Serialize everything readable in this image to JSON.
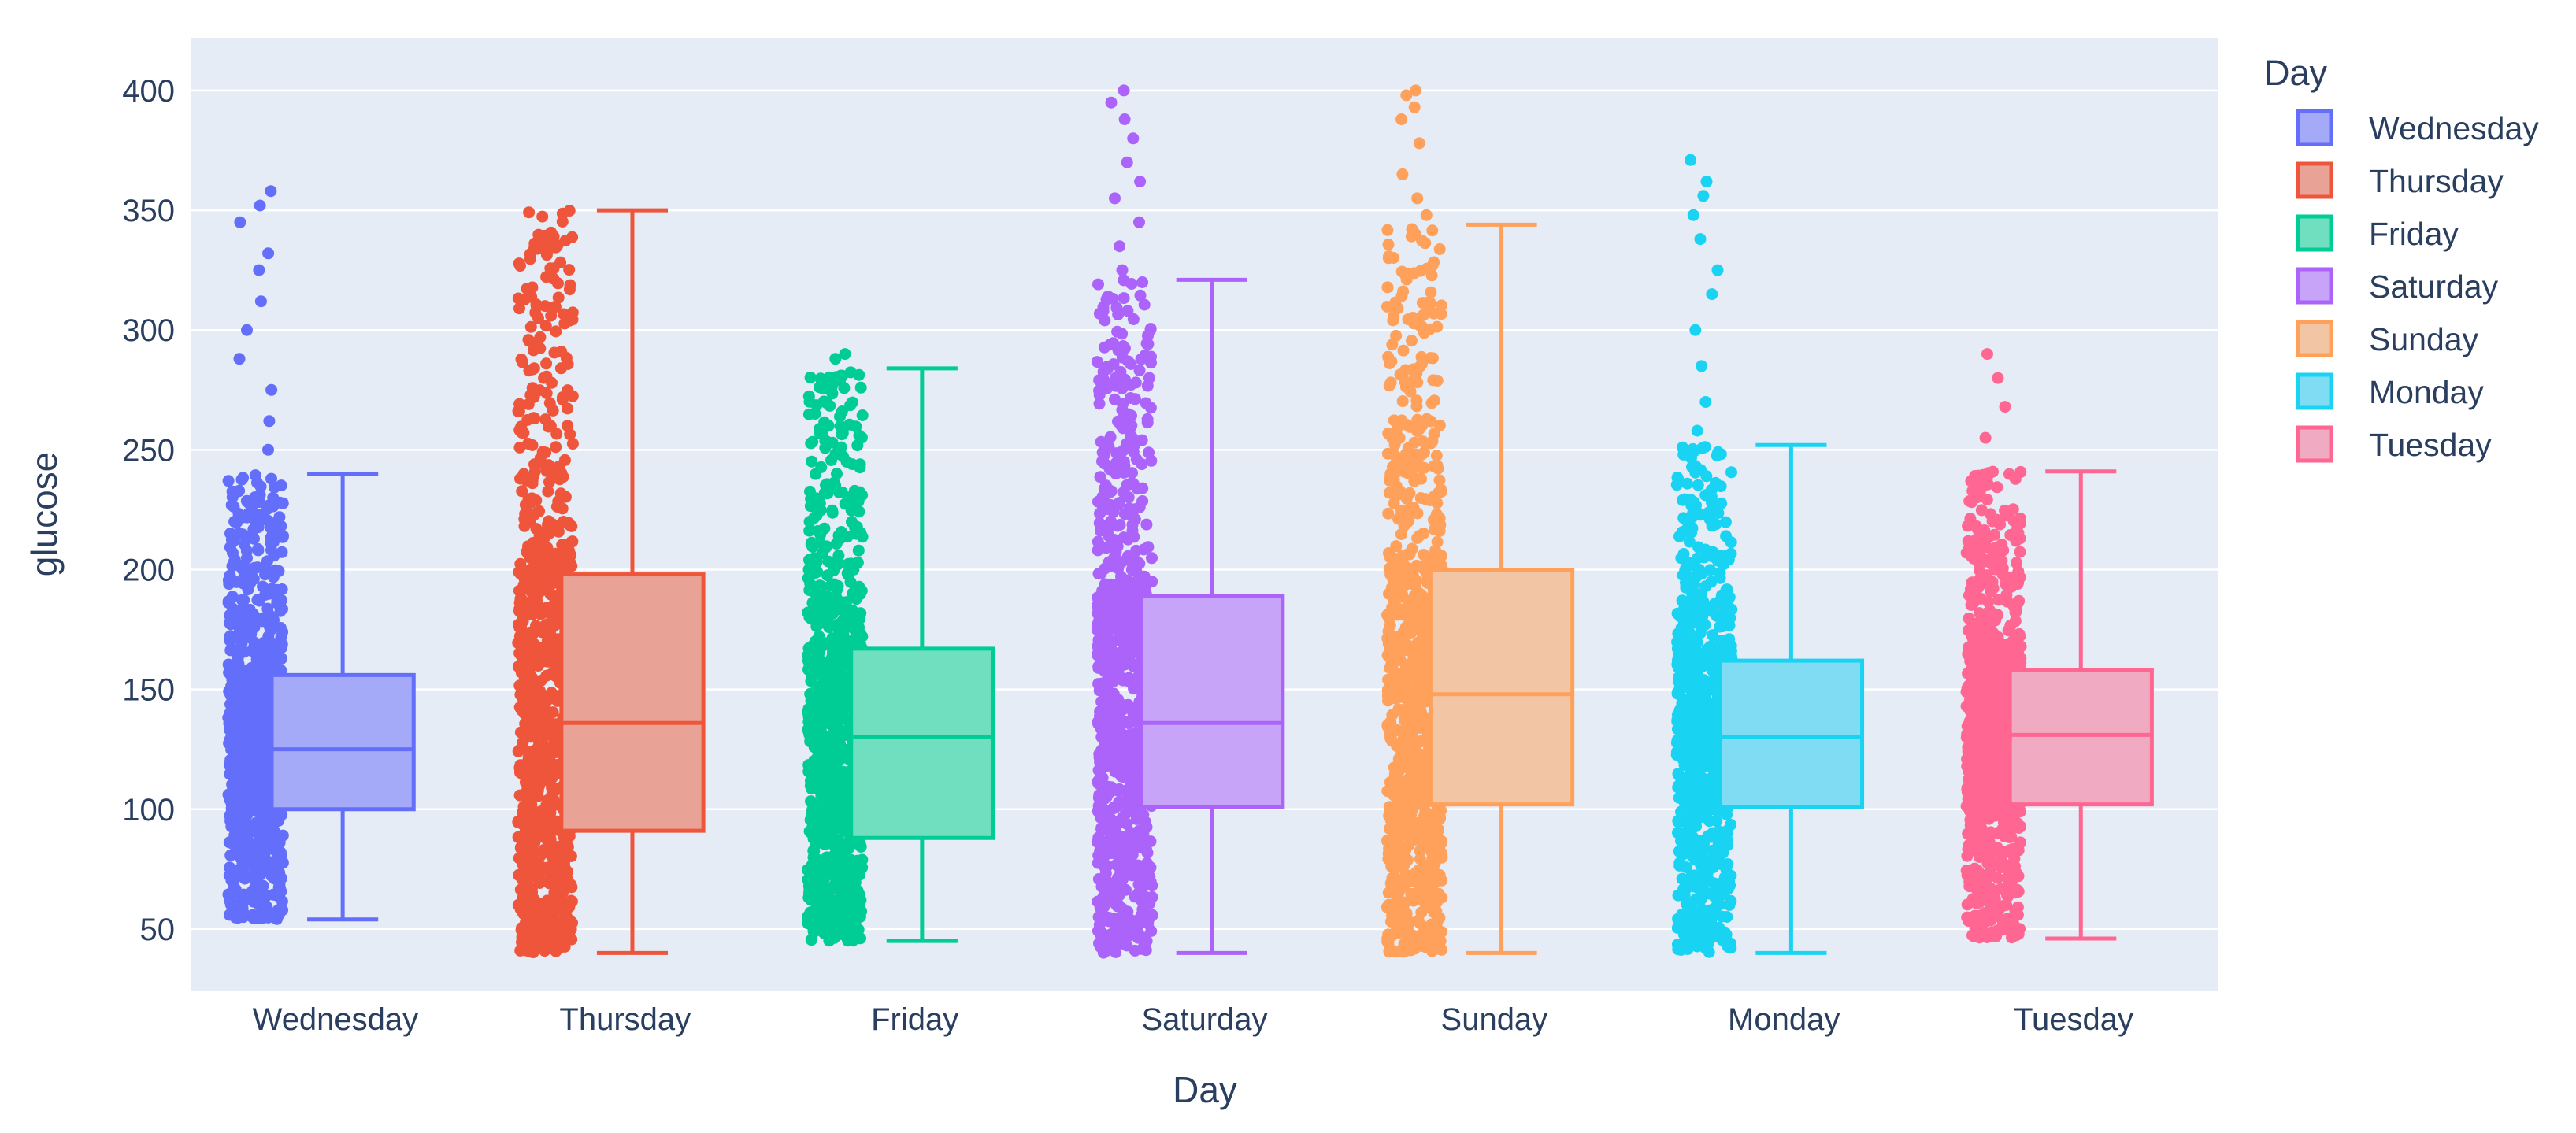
{
  "chart_data": {
    "type": "box",
    "title": "",
    "xlabel": "Day",
    "ylabel": "glucose",
    "ylim": [
      24,
      422
    ],
    "yticks": [
      50,
      100,
      150,
      200,
      250,
      300,
      350,
      400
    ],
    "grid": true,
    "legend": {
      "title": "Day",
      "position": "right"
    },
    "points": "all",
    "categories": [
      "Wednesday",
      "Thursday",
      "Friday",
      "Saturday",
      "Sunday",
      "Monday",
      "Tuesday"
    ],
    "series": [
      {
        "name": "Wednesday",
        "color": "#636efa",
        "fill": "#a4aaf7",
        "min": 54,
        "q1": 100,
        "median": 125,
        "q3": 156,
        "max": 240,
        "points_min": 54,
        "points_max": 358,
        "outliers": [
          250,
          262,
          275,
          288,
          300,
          312,
          325,
          332,
          345,
          352,
          358
        ]
      },
      {
        "name": "Thursday",
        "color": "#ef553b",
        "fill": "#e9a396",
        "min": 40,
        "q1": 91,
        "median": 136,
        "q3": 198,
        "max": 350,
        "points_min": 40,
        "points_max": 350,
        "outliers": []
      },
      {
        "name": "Friday",
        "color": "#00cc96",
        "fill": "#6fdfc0",
        "min": 45,
        "q1": 88,
        "median": 130,
        "q3": 167,
        "max": 284,
        "points_min": 45,
        "points_max": 290,
        "outliers": [
          288,
          290
        ]
      },
      {
        "name": "Saturday",
        "color": "#ab63fa",
        "fill": "#c7a4f7",
        "min": 40,
        "q1": 101,
        "median": 136,
        "q3": 189,
        "max": 321,
        "points_min": 40,
        "points_max": 400,
        "outliers": [
          325,
          335,
          345,
          355,
          362,
          370,
          380,
          388,
          395,
          400
        ]
      },
      {
        "name": "Sunday",
        "color": "#ffa15a",
        "fill": "#f2c6a4",
        "min": 40,
        "q1": 102,
        "median": 148,
        "q3": 200,
        "max": 344,
        "points_min": 40,
        "points_max": 400,
        "outliers": [
          348,
          355,
          365,
          378,
          388,
          393,
          398,
          400
        ]
      },
      {
        "name": "Monday",
        "color": "#19d3f3",
        "fill": "#7fdcf3",
        "min": 40,
        "q1": 101,
        "median": 130,
        "q3": 162,
        "max": 252,
        "points_min": 40,
        "points_max": 371,
        "outliers": [
          258,
          270,
          285,
          300,
          315,
          325,
          338,
          348,
          356,
          362,
          371
        ]
      },
      {
        "name": "Tuesday",
        "color": "#ff6692",
        "fill": "#f0aac2",
        "min": 46,
        "q1": 102,
        "median": 131,
        "q3": 158,
        "max": 241,
        "points_min": 46,
        "points_max": 290,
        "outliers": [
          255,
          268,
          280,
          290
        ]
      }
    ]
  }
}
